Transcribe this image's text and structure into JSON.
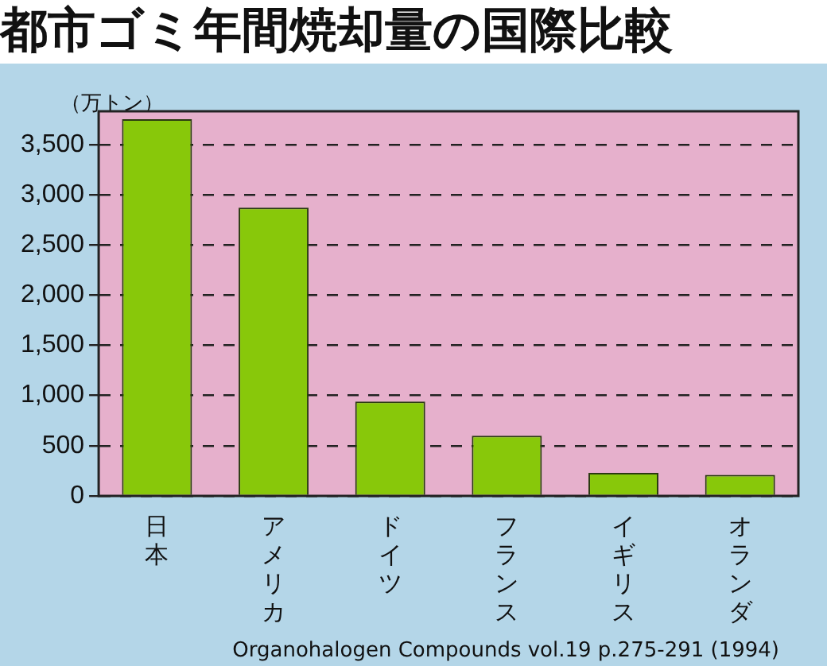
{
  "chart_data": {
    "type": "bar",
    "title": "都市ゴミ年間焼却量の国際比較",
    "ylabel": "（万トン）",
    "categories": [
      "日本",
      "アメリカ",
      "ドイツ",
      "フランス",
      "イギリス",
      "オランダ"
    ],
    "values": [
      3750,
      2870,
      940,
      600,
      230,
      210
    ],
    "color": "#88c80a",
    "ylim": [
      0,
      3830
    ],
    "yticks": [
      0,
      500,
      {
        "value": 1000,
        "label": "1,000"
      },
      {
        "value": 1500,
        "label": "1,500"
      },
      {
        "value": 2000,
        "label": "2,000"
      },
      {
        "value": 2500,
        "label": "2,500"
      },
      {
        "value": 3000,
        "label": "3,000"
      },
      {
        "value": 3500,
        "label": "3,500"
      }
    ],
    "grid": "y",
    "annotations": [
      "Organohalogen Compounds vol.19 p.275-291 (1994)"
    ]
  }
}
